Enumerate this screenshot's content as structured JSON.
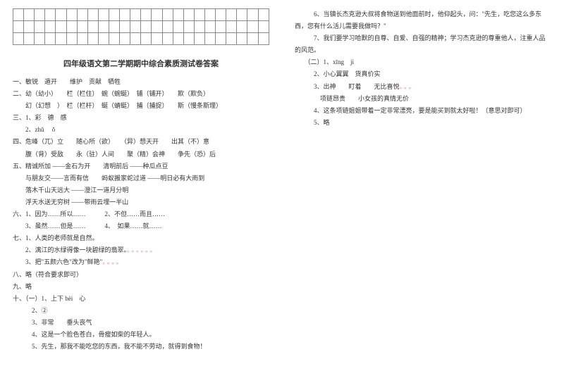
{
  "title": "四年级语文第二学期期中综合素质测试卷答案",
  "left": {
    "l1": "一、敏锐　遁开　　维护　贡献　牺牲",
    "l2": "二、幼（幼小）　　栏（栏住）　蜿（蜿蜒）　铺（铺开）　　欺（欺负）",
    "l3": "　　幻（幻想　）　栏（栏杆）　蜒（蜻蜓）　捕（捕捉）　　斯（慢条斯理）",
    "l4": "三、1、彩　德　感",
    "l5": "　　2、zhǔ　 ǒ",
    "l6": "四、危峰（兀）立　　随心所（欲）　　（异）想天开　　出其（不）意",
    "l7": "　　腹（背）受敌　　永（驻）人间　　聚（精）会神　　争先（恐）后",
    "l8": "五、精诚所加 ——金石为开　　清明前后 ——种瓜点豆",
    "l9": "　　与朋友交——言而有信　　蚂蚁搬家蛇过道 ——明日必有大雨到",
    "l10": "　　落木千山天远大 ——澄江一道月分明",
    "l11": "　　浮天水送无穷树 ——带雨云埋一半山",
    "l12": "六、1、因为……所以……　　　2、不但……而且……",
    "l13": "　　3、虽然……但是……　　　4、　如果……就……",
    "l14": "七、1、人类的老师就是自然。",
    "l15": "　　2、漓江的水绿得像一块碧绿的翡翠。",
    "l15dots": "。。。。。。",
    "l16": "　　3、把\"五颜六色\"改为\"鲜艳\"",
    "l16dots": "。。。。",
    "l17": "八、略（符合要求即可）",
    "l18": "九、略",
    "l19": "十、（一）1、上下 bèi　心",
    "l20": "　　　2、②",
    "l21": "　　　3、非常　　垂头丧气",
    "l22": "　　　4、这是一个脸色苍白，骨瘦如柴的年轻人。",
    "l23": "　　　5、先生，那我不能吃您的东西，我不能不劳动，就得到食物！"
  },
  "right": {
    "r1": "　　　6、当镇长杰克逊大叔将食物送到他面前时，他仰起头，问：\"先生，吃您这么多东",
    "r2": "西，您有什么活儿需要我做吗？\"",
    "r3": "　　　7、我们要学习哈默的自尊、自爱、自强的精神；学习杰克逊的尊重他人，注重人品",
    "r4": "的风范。",
    "r5": "　　（二）1、xīng　jì",
    "r6": "　　　2、小心翼翼　货真价实",
    "r7": "　　　3、出神　　盯着　　无比喜悦",
    "r7dots": "。。。",
    "r8": "　　　　项链昂贵　　小女孩的真情无价",
    "r9": "　　　4、这条项链姐姐带着一定非常漂亮，要是能买到就太好啦！（意思对即可）",
    "r10": "　　　5、略"
  }
}
